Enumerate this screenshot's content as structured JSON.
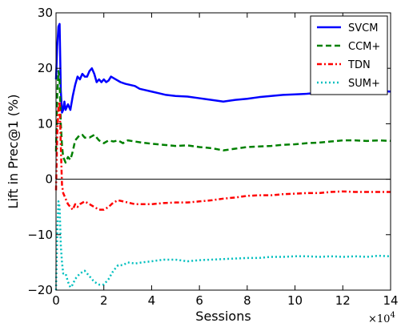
{
  "chart_data": {
    "type": "line",
    "title": "",
    "xlabel": "Sessions",
    "ylabel": "Lift in Prec@1 (%)",
    "x_scale_label": "×10",
    "x_scale_exponent": "4",
    "xlim": [
      0,
      14
    ],
    "ylim": [
      -20,
      30
    ],
    "xticks": [
      0,
      2,
      4,
      6,
      8,
      10,
      12,
      14
    ],
    "xtick_labels": [
      "0",
      "2",
      "4",
      "6",
      "8",
      "10",
      "12",
      "14"
    ],
    "yticks": [
      -20,
      -10,
      0,
      10,
      20,
      30
    ],
    "ytick_labels": [
      "−20",
      "−10",
      "0",
      "10",
      "20",
      "30"
    ],
    "zero_line": true,
    "grid": false,
    "legend_position": "top-right",
    "series": [
      {
        "name": "SVCM",
        "color": "#0000ff",
        "style": "solid",
        "x": [
          0,
          0.05,
          0.1,
          0.15,
          0.2,
          0.25,
          0.3,
          0.35,
          0.4,
          0.5,
          0.6,
          0.7,
          0.8,
          0.9,
          1.0,
          1.1,
          1.2,
          1.3,
          1.4,
          1.5,
          1.6,
          1.7,
          1.8,
          1.9,
          2.0,
          2.1,
          2.2,
          2.3,
          2.5,
          2.7,
          2.9,
          3.1,
          3.3,
          3.5,
          3.7,
          4.0,
          4.3,
          4.6,
          5.0,
          5.5,
          6.0,
          6.5,
          7.0,
          7.5,
          8.0,
          8.5,
          9.0,
          9.5,
          10.0,
          10.5,
          11.0,
          11.5,
          12.0,
          12.5,
          13.0,
          13.5,
          14.0
        ],
        "values": [
          18,
          24,
          27.5,
          28,
          16,
          12,
          12.5,
          14,
          12.5,
          13.5,
          12.5,
          15,
          17,
          18.5,
          18,
          19,
          18.5,
          18.5,
          19.5,
          20,
          19,
          17.5,
          18,
          17.5,
          18,
          17.5,
          17.8,
          18.5,
          18,
          17.5,
          17.2,
          17,
          16.8,
          16.3,
          16.1,
          15.8,
          15.5,
          15.2,
          15.0,
          14.9,
          14.6,
          14.3,
          14.0,
          14.3,
          14.5,
          14.8,
          15.0,
          15.2,
          15.3,
          15.4,
          15.6,
          15.8,
          16.0,
          15.8,
          15.8,
          15.9,
          15.8
        ]
      },
      {
        "name": "CCM+",
        "color": "#008000",
        "style": "dashed",
        "x": [
          0,
          0.05,
          0.1,
          0.15,
          0.2,
          0.25,
          0.3,
          0.4,
          0.5,
          0.6,
          0.7,
          0.8,
          0.9,
          1.0,
          1.1,
          1.2,
          1.4,
          1.6,
          1.8,
          2.0,
          2.2,
          2.4,
          2.6,
          2.8,
          3.0,
          3.3,
          3.6,
          4.0,
          4.5,
          5.0,
          5.5,
          6.0,
          6.5,
          7.0,
          7.5,
          8.0,
          8.5,
          9.0,
          9.5,
          10.0,
          10.5,
          11.0,
          11.5,
          12.0,
          12.5,
          13.0,
          13.5,
          14.0
        ],
        "values": [
          5,
          15,
          19.5,
          18,
          10,
          6,
          4,
          3,
          4,
          3.5,
          5,
          7,
          7.5,
          8,
          8,
          7.5,
          7.5,
          8,
          7,
          6.5,
          7,
          6.8,
          7,
          6.5,
          7,
          6.8,
          6.6,
          6.4,
          6.2,
          6.0,
          6.1,
          5.8,
          5.6,
          5.2,
          5.5,
          5.8,
          5.9,
          6.0,
          6.2,
          6.3,
          6.5,
          6.6,
          6.8,
          7.0,
          7.0,
          6.9,
          7.0,
          6.9
        ]
      },
      {
        "name": "TDN",
        "color": "#ff0000",
        "style": "dashdot",
        "x": [
          0,
          0.05,
          0.1,
          0.15,
          0.2,
          0.25,
          0.3,
          0.4,
          0.5,
          0.6,
          0.7,
          0.8,
          0.9,
          1.0,
          1.2,
          1.4,
          1.6,
          1.8,
          2.0,
          2.2,
          2.4,
          2.6,
          2.8,
          3.0,
          3.3,
          3.6,
          4.0,
          4.5,
          5.0,
          5.5,
          6.0,
          6.5,
          7.0,
          7.5,
          8.0,
          8.5,
          9.0,
          9.5,
          10.0,
          10.5,
          11.0,
          11.5,
          12.0,
          12.5,
          13.0,
          13.5,
          14.0
        ],
        "values": [
          -2,
          8,
          13,
          14,
          6,
          -1,
          -2.5,
          -3.5,
          -4.5,
          -5,
          -5.5,
          -4.5,
          -5,
          -4.5,
          -4,
          -4.5,
          -5,
          -5.5,
          -5.5,
          -5,
          -4.2,
          -3.8,
          -4,
          -4.2,
          -4.5,
          -4.5,
          -4.5,
          -4.3,
          -4.2,
          -4.2,
          -4.0,
          -3.8,
          -3.5,
          -3.3,
          -3.0,
          -2.9,
          -2.9,
          -2.7,
          -2.6,
          -2.5,
          -2.5,
          -2.3,
          -2.2,
          -2.3,
          -2.3,
          -2.3,
          -2.3
        ]
      },
      {
        "name": "SUM+",
        "color": "#00bfbf",
        "style": "dotted",
        "x": [
          0,
          0.05,
          0.1,
          0.15,
          0.2,
          0.25,
          0.3,
          0.4,
          0.5,
          0.6,
          0.7,
          0.8,
          0.9,
          1.0,
          1.2,
          1.4,
          1.6,
          1.8,
          2.0,
          2.2,
          2.4,
          2.6,
          2.8,
          3.0,
          3.3,
          3.6,
          4.0,
          4.5,
          5.0,
          5.5,
          6.0,
          6.5,
          7.0,
          7.5,
          8.0,
          8.5,
          9.0,
          9.5,
          10.0,
          10.5,
          11.0,
          11.5,
          12.0,
          12.5,
          13.0,
          13.5,
          14.0
        ],
        "values": [
          -20,
          -10,
          -4,
          -5,
          -12,
          -15,
          -17,
          -17,
          -18.5,
          -19.5,
          -19,
          -18,
          -17.5,
          -17,
          -16.5,
          -17.5,
          -18.5,
          -19,
          -19,
          -18,
          -16.5,
          -15.5,
          -15.5,
          -15,
          -15.2,
          -15,
          -14.8,
          -14.5,
          -14.5,
          -14.8,
          -14.6,
          -14.5,
          -14.4,
          -14.3,
          -14.2,
          -14.2,
          -14.0,
          -14.0,
          -13.9,
          -13.9,
          -14.0,
          -13.9,
          -14.0,
          -13.9,
          -14.0,
          -13.8,
          -13.9
        ]
      }
    ]
  }
}
